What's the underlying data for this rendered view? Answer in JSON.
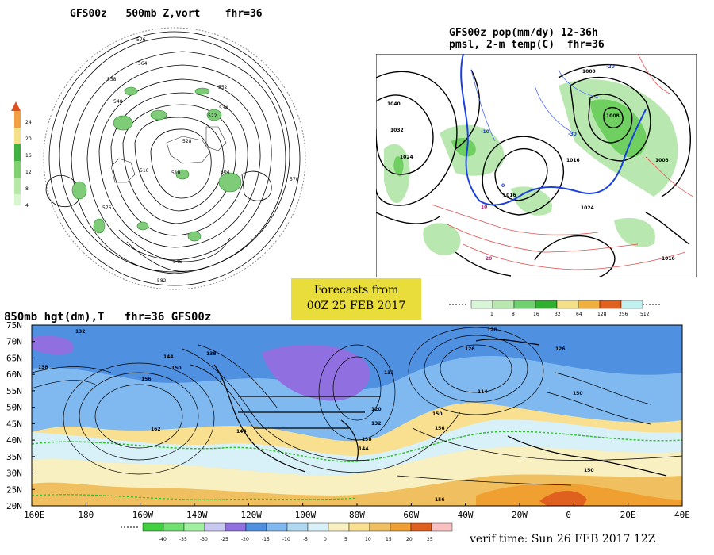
{
  "panels": {
    "vort": {
      "title": "GFS00z   500mb Z,vort    fhr=36",
      "contour_labels": [
        "576",
        "564",
        "558",
        "552",
        "540",
        "534",
        "528",
        "522",
        "516",
        "510",
        "504",
        "576",
        "570",
        "546",
        "582"
      ],
      "scale": [
        "24",
        "20",
        "16",
        "12",
        "8",
        "4"
      ]
    },
    "pop": {
      "title_line1": "GFS00z pop(mm/dy) 12-36h",
      "title_line2": "pmsl, 2-m temp(C)  fhr=36",
      "isobar_labels": [
        "1040",
        "1032",
        "1024",
        "1016",
        "1008",
        "1000",
        "1016",
        "1024",
        "1008",
        "1016"
      ],
      "temp_labels": [
        "-10",
        "-20",
        "-30",
        "0",
        "10",
        "20"
      ],
      "scale_ticks": [
        "1",
        "8",
        "16",
        "32",
        "64",
        "128",
        "256",
        "512"
      ],
      "scale_colors": [
        "#d8f5d8",
        "#b8e8b0",
        "#70d070",
        "#30b030",
        "#f5e08a",
        "#f0b040",
        "#e06020",
        "#c0f0f0"
      ]
    },
    "hgt": {
      "title": "850mb hgt(dm),T   fhr=36 GFS00z",
      "lat_labels": [
        "75N",
        "70N",
        "65N",
        "60N",
        "55N",
        "50N",
        "45N",
        "40N",
        "35N",
        "30N",
        "25N",
        "20N"
      ],
      "lon_labels": [
        "160E",
        "180",
        "160W",
        "140W",
        "120W",
        "100W",
        "80W",
        "60W",
        "40W",
        "20W",
        "0",
        "20E",
        "40E"
      ],
      "height_labels": [
        "138",
        "144",
        "150",
        "156",
        "162",
        "132",
        "126",
        "120",
        "114",
        "138",
        "144",
        "150",
        "156",
        "150",
        "156",
        "138",
        "132",
        "126",
        "120",
        "132",
        "144",
        "150"
      ],
      "scale_ticks": [
        "-40",
        "-35",
        "-30",
        "-25",
        "-20",
        "-15",
        "-10",
        "-5",
        "0",
        "5",
        "10",
        "15",
        "20",
        "25"
      ],
      "scale_colors": [
        "#40d040",
        "#70e070",
        "#a0f0a0",
        "#c8c8f0",
        "#9070e0",
        "#5090e0",
        "#80b8f0",
        "#b0d8f0",
        "#d8f0f8",
        "#f8f0c0",
        "#f8e090",
        "#f0c060",
        "#f0a030",
        "#e06020",
        "#f8c0c0"
      ]
    }
  },
  "forecast_box": {
    "line1": "Forecasts from",
    "line2": "00Z 25 FEB 2017"
  },
  "verif_time": "verif time: Sun 26 FEB 2017 12Z"
}
